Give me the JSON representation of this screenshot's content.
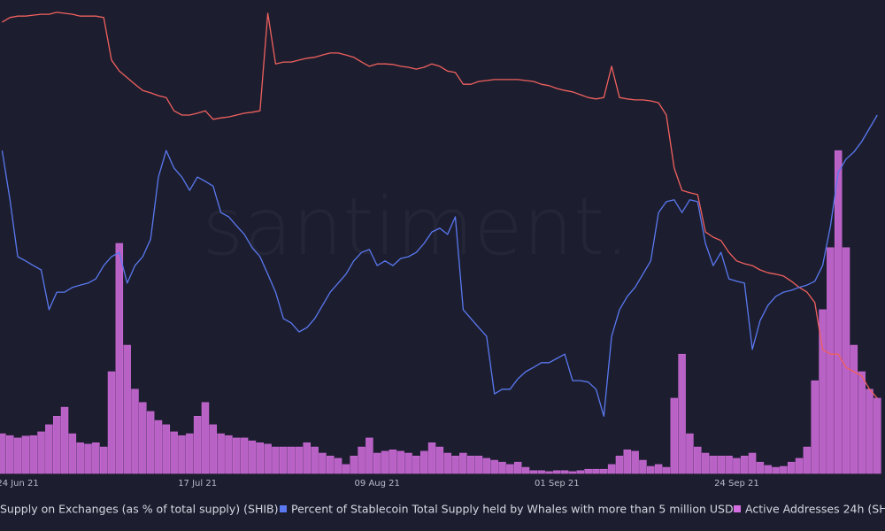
{
  "chart_data": {
    "type": "line",
    "watermark": "santiment.",
    "xlim": [
      -2.27,
      110.98
    ],
    "xticks": [
      {
        "value": 0,
        "label": "24 Jun 21"
      },
      {
        "value": 23,
        "label": "17 Jul 21"
      },
      {
        "value": 46,
        "label": "09 Aug 21"
      },
      {
        "value": 69,
        "label": "01 Sep 21"
      },
      {
        "value": 92,
        "label": "24 Sep 21"
      }
    ],
    "ylim": [
      0,
      100
    ],
    "x": [
      -2,
      -1,
      0,
      1,
      2,
      3,
      4,
      5,
      6,
      7,
      8,
      9,
      10,
      11,
      12,
      13,
      14,
      15,
      16,
      17,
      18,
      19,
      20,
      21,
      22,
      23,
      24,
      25,
      26,
      27,
      28,
      29,
      30,
      31,
      32,
      33,
      34,
      35,
      36,
      37,
      38,
      39,
      40,
      41,
      42,
      43,
      44,
      45,
      46,
      47,
      48,
      49,
      50,
      51,
      52,
      53,
      54,
      55,
      56,
      57,
      58,
      59,
      60,
      61,
      62,
      63,
      64,
      65,
      66,
      67,
      68,
      69,
      70,
      71,
      72,
      73,
      74,
      75,
      76,
      77,
      78,
      79,
      80,
      81,
      82,
      83,
      84,
      85,
      86,
      87,
      88,
      89,
      90,
      91,
      92,
      93,
      94,
      95,
      96,
      97,
      98,
      99,
      100,
      101,
      102,
      103,
      104,
      105,
      106,
      107,
      108,
      109,
      110
    ],
    "series": [
      {
        "name": "Active Addresses 24h (SH",
        "type": "bar",
        "color": "#d56ee0",
        "values": [
          8.4,
          8.0,
          7.5,
          7.9,
          8.0,
          8.8,
          10.3,
          12.1,
          14.0,
          8.4,
          6.5,
          6.2,
          6.5,
          5.6,
          21.5,
          48.6,
          27.1,
          17.8,
          15.0,
          13.1,
          11.2,
          10.3,
          8.8,
          8.0,
          8.4,
          12.1,
          15.0,
          10.3,
          8.4,
          8.0,
          7.5,
          7.5,
          6.9,
          6.5,
          6.2,
          5.6,
          5.6,
          5.6,
          5.6,
          6.5,
          5.6,
          4.3,
          3.7,
          3.2,
          1.9,
          3.7,
          5.6,
          7.5,
          4.3,
          4.7,
          5.0,
          4.7,
          4.3,
          3.7,
          4.7,
          6.5,
          5.6,
          4.3,
          3.7,
          4.3,
          3.7,
          3.7,
          3.2,
          2.8,
          2.4,
          1.9,
          2.4,
          1.3,
          0.6,
          0.6,
          0.4,
          0.6,
          0.6,
          0.4,
          0.6,
          0.9,
          0.9,
          0.9,
          1.9,
          3.7,
          5.0,
          4.7,
          2.8,
          1.5,
          1.9,
          1.3,
          15.9,
          25.2,
          8.4,
          5.6,
          4.3,
          3.7,
          3.7,
          3.7,
          3.2,
          3.7,
          4.3,
          2.4,
          1.7,
          1.3,
          1.5,
          2.4,
          3.2,
          5.6,
          19.6,
          34.6,
          47.7,
          68.2,
          47.7,
          27.1,
          21.5,
          17.8,
          15.9
        ]
      },
      {
        "name": "Supply on Exchanges (as % of total supply) (SHIB)",
        "type": "line",
        "color": "#f0605e",
        "values": [
          95.3,
          96.3,
          96.6,
          96.6,
          96.8,
          97.0,
          97.0,
          97.4,
          97.2,
          97.0,
          96.6,
          96.6,
          96.6,
          96.3,
          87.3,
          85.0,
          83.6,
          82.2,
          80.9,
          80.4,
          79.8,
          79.4,
          76.6,
          75.7,
          75.7,
          76.1,
          76.6,
          74.8,
          75.1,
          75.3,
          75.7,
          76.1,
          76.3,
          76.6,
          97.2,
          86.5,
          86.9,
          86.9,
          87.3,
          87.7,
          87.9,
          88.4,
          88.8,
          88.8,
          88.4,
          87.9,
          86.9,
          86.0,
          86.5,
          86.5,
          86.4,
          86.0,
          85.8,
          85.4,
          85.8,
          86.5,
          86.0,
          85.0,
          84.7,
          82.2,
          82.2,
          82.8,
          83.0,
          83.2,
          83.2,
          83.2,
          83.2,
          83.0,
          82.8,
          82.2,
          81.9,
          81.3,
          80.9,
          80.6,
          80.0,
          79.4,
          79.1,
          79.4,
          86.0,
          79.4,
          79.1,
          78.9,
          78.9,
          78.7,
          78.3,
          75.7,
          64.5,
          59.8,
          59.3,
          58.9,
          51.0,
          49.9,
          49.2,
          46.7,
          44.9,
          44.3,
          43.9,
          43.0,
          42.4,
          42.1,
          41.7,
          40.6,
          39.3,
          38.3,
          36.1,
          26.2,
          25.2,
          25.2,
          22.4,
          21.5,
          20.6,
          17.8,
          15.9
        ]
      },
      {
        "name": "Percent of Stablecoin Total Supply held by Whales with more than 5 million USD",
        "type": "line",
        "color": "#5a78f0",
        "values": [
          68.2,
          57.9,
          45.8,
          44.9,
          43.9,
          43.0,
          34.6,
          38.3,
          38.3,
          39.3,
          39.8,
          40.2,
          41.1,
          43.9,
          45.8,
          46.7,
          40.2,
          43.9,
          45.8,
          49.5,
          62.6,
          68.2,
          64.5,
          62.6,
          59.8,
          62.6,
          61.7,
          60.7,
          55.1,
          54.2,
          52.3,
          50.5,
          47.7,
          45.8,
          42.1,
          38.3,
          32.7,
          31.8,
          29.9,
          30.8,
          32.7,
          35.5,
          38.3,
          40.2,
          42.1,
          44.9,
          46.7,
          47.3,
          43.9,
          44.9,
          43.9,
          45.4,
          45.8,
          46.7,
          48.6,
          51.0,
          51.8,
          50.5,
          54.2,
          34.6,
          32.7,
          30.8,
          29.0,
          16.8,
          17.8,
          17.8,
          20.0,
          21.5,
          22.4,
          23.4,
          23.4,
          24.3,
          25.2,
          19.6,
          19.6,
          19.3,
          17.8,
          12.1,
          29.0,
          34.6,
          37.4,
          39.3,
          42.1,
          44.9,
          55.1,
          57.4,
          57.8,
          55.1,
          57.8,
          57.4,
          48.6,
          43.9,
          46.7,
          41.1,
          40.6,
          40.2,
          26.2,
          32.3,
          35.5,
          37.4,
          38.3,
          38.7,
          39.3,
          39.8,
          40.6,
          43.9,
          52.3,
          63.6,
          66.4,
          67.9,
          70.1,
          72.9,
          75.7
        ]
      }
    ]
  }
}
